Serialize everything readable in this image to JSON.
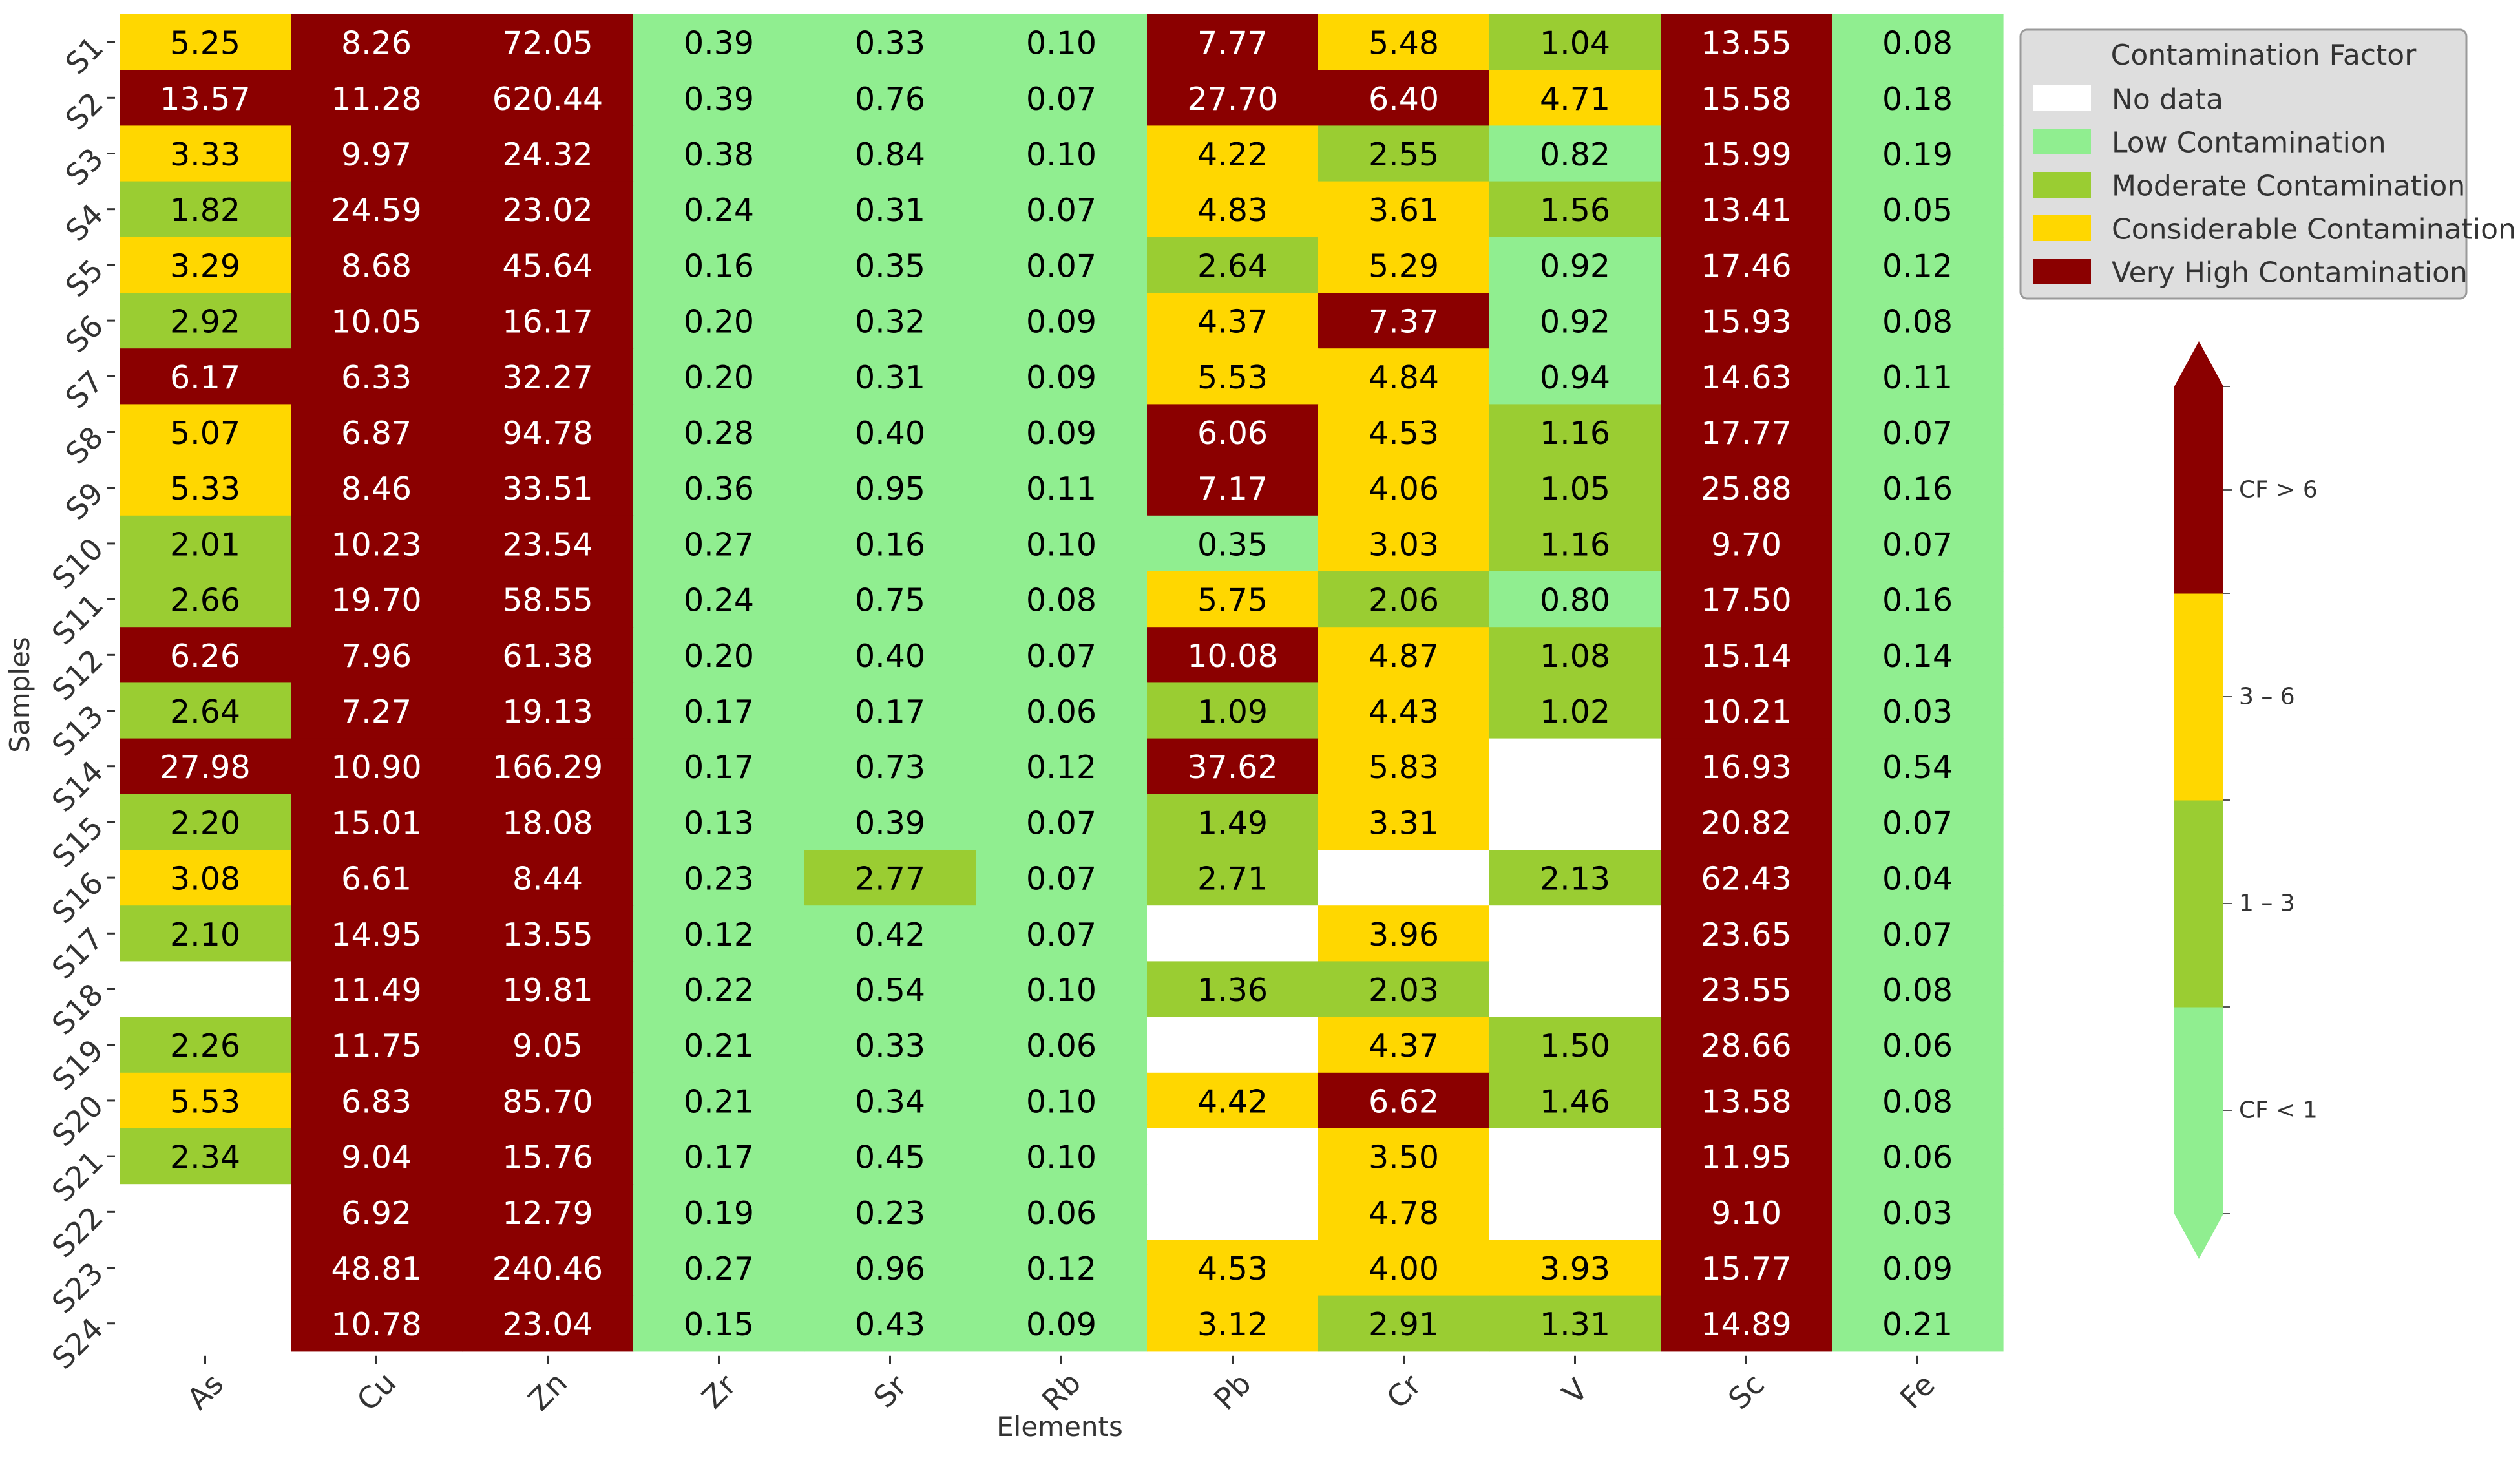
{
  "chart_data": {
    "type": "heatmap",
    "xlabel": "Elements",
    "ylabel": "Samples",
    "categories_x": [
      "As",
      "Cu",
      "Zn",
      "Zr",
      "Sr",
      "Rb",
      "Pb",
      "Cr",
      "V",
      "Sc",
      "Fe"
    ],
    "categories_y": [
      "S1",
      "S2",
      "S3",
      "S4",
      "S5",
      "S6",
      "S7",
      "S8",
      "S9",
      "S10",
      "S11",
      "S12",
      "S13",
      "S14",
      "S15",
      "S16",
      "S17",
      "S18",
      "S19",
      "S20",
      "S21",
      "S22",
      "S23",
      "S24"
    ],
    "values": [
      [
        5.25,
        8.26,
        72.05,
        0.39,
        0.33,
        0.1,
        7.77,
        5.48,
        1.04,
        13.55,
        0.08
      ],
      [
        13.57,
        11.28,
        620.44,
        0.39,
        0.76,
        0.07,
        27.7,
        6.4,
        4.71,
        15.58,
        0.18
      ],
      [
        3.33,
        9.97,
        24.32,
        0.38,
        0.84,
        0.1,
        4.22,
        2.55,
        0.82,
        15.99,
        0.19
      ],
      [
        1.82,
        24.59,
        23.02,
        0.24,
        0.31,
        0.07,
        4.83,
        3.61,
        1.56,
        13.41,
        0.05
      ],
      [
        3.29,
        8.68,
        45.64,
        0.16,
        0.35,
        0.07,
        2.64,
        5.29,
        0.92,
        17.46,
        0.12
      ],
      [
        2.92,
        10.05,
        16.17,
        0.2,
        0.32,
        0.09,
        4.37,
        7.37,
        0.92,
        15.93,
        0.08
      ],
      [
        6.17,
        6.33,
        32.27,
        0.2,
        0.31,
        0.09,
        5.53,
        4.84,
        0.94,
        14.63,
        0.11
      ],
      [
        5.07,
        6.87,
        94.78,
        0.28,
        0.4,
        0.09,
        6.06,
        4.53,
        1.16,
        17.77,
        0.07
      ],
      [
        5.33,
        8.46,
        33.51,
        0.36,
        0.95,
        0.11,
        7.17,
        4.06,
        1.05,
        25.88,
        0.16
      ],
      [
        2.01,
        10.23,
        23.54,
        0.27,
        0.16,
        0.1,
        0.35,
        3.03,
        1.16,
        9.7,
        0.07
      ],
      [
        2.66,
        19.7,
        58.55,
        0.24,
        0.75,
        0.08,
        5.75,
        2.06,
        0.8,
        17.5,
        0.16
      ],
      [
        6.26,
        7.96,
        61.38,
        0.2,
        0.4,
        0.07,
        10.08,
        4.87,
        1.08,
        15.14,
        0.14
      ],
      [
        2.64,
        7.27,
        19.13,
        0.17,
        0.17,
        0.06,
        1.09,
        4.43,
        1.02,
        10.21,
        0.03
      ],
      [
        27.98,
        10.9,
        166.29,
        0.17,
        0.73,
        0.12,
        37.62,
        5.83,
        null,
        16.93,
        0.54
      ],
      [
        2.2,
        15.01,
        18.08,
        0.13,
        0.39,
        0.07,
        1.49,
        3.31,
        null,
        20.82,
        0.07
      ],
      [
        3.08,
        6.61,
        8.44,
        0.23,
        2.77,
        0.07,
        2.71,
        null,
        2.13,
        62.43,
        0.04
      ],
      [
        2.1,
        14.95,
        13.55,
        0.12,
        0.42,
        0.07,
        null,
        3.96,
        null,
        23.65,
        0.07
      ],
      [
        null,
        11.49,
        19.81,
        0.22,
        0.54,
        0.1,
        1.36,
        2.03,
        null,
        23.55,
        0.08
      ],
      [
        2.26,
        11.75,
        9.05,
        0.21,
        0.33,
        0.06,
        null,
        4.37,
        1.5,
        28.66,
        0.06
      ],
      [
        5.53,
        6.83,
        85.7,
        0.21,
        0.34,
        0.1,
        4.42,
        6.62,
        1.46,
        13.58,
        0.08
      ],
      [
        2.34,
        9.04,
        15.76,
        0.17,
        0.45,
        0.1,
        null,
        3.5,
        null,
        11.95,
        0.06
      ],
      [
        null,
        6.92,
        12.79,
        0.19,
        0.23,
        0.06,
        null,
        4.78,
        null,
        9.1,
        0.03
      ],
      [
        null,
        48.81,
        240.46,
        0.27,
        0.96,
        0.12,
        4.53,
        4.0,
        3.93,
        15.77,
        0.09
      ],
      [
        null,
        10.78,
        23.04,
        0.15,
        0.43,
        0.09,
        3.12,
        2.91,
        1.31,
        14.89,
        0.21
      ]
    ],
    "classes": [
      {
        "max": 1,
        "color": "#90ee90"
      },
      {
        "max": 3,
        "color": "#9acd32"
      },
      {
        "max": 6,
        "color": "#ffd700"
      },
      {
        "max": 1000000,
        "color": "#8b0000"
      }
    ],
    "no_data_color": "#ffffff",
    "text_colors": {
      "dark": "#000000",
      "light": "#ffffff"
    },
    "legend": {
      "title": "Contamination Factor",
      "placement": "upper-right",
      "entries": [
        {
          "label": "No data",
          "color": "#ffffff"
        },
        {
          "label": "Low Contamination",
          "color": "#90ee90"
        },
        {
          "label": "Moderate Contamination",
          "color": "#9acd32"
        },
        {
          "label": "Considerable Contamination",
          "color": "#ffd700"
        },
        {
          "label": "Very High Contamination",
          "color": "#8b0000"
        }
      ]
    },
    "colorbar": {
      "labels": [
        "CF < 1",
        "1 – 3",
        "3 – 6",
        "CF > 6"
      ],
      "colors": [
        "#90ee90",
        "#9acd32",
        "#ffd700",
        "#8b0000"
      ]
    }
  }
}
